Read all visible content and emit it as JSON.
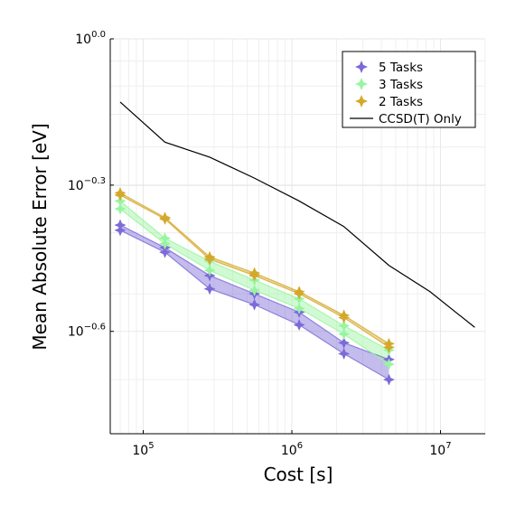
{
  "chart_data": {
    "type": "line",
    "xlabel": "Cost [s]",
    "ylabel": "Mean Absolute Error [eV]",
    "x_scale": "log10",
    "y_scale": "log10",
    "xlim": [
      60000,
      20000000
    ],
    "ylim": [
      0.1549,
      1.0
    ],
    "x_ticks": [
      {
        "value": 100000,
        "base": "10",
        "exp": "5"
      },
      {
        "value": 1000000,
        "base": "10",
        "exp": "6"
      },
      {
        "value": 10000000,
        "base": "10",
        "exp": "7"
      }
    ],
    "y_ticks": [
      {
        "value": 1.0,
        "base": "10",
        "exp": "0.0"
      },
      {
        "value": 0.5012,
        "base": "10",
        "exp": "−0.3"
      },
      {
        "value": 0.2512,
        "base": "10",
        "exp": "−0.6"
      }
    ],
    "grid": true,
    "legend_position": "top-right",
    "series": [
      {
        "name": "5 Tasks",
        "color": "#7b6ad8",
        "x": [
          70000,
          140000,
          280000,
          560000,
          1120000,
          2240000,
          4500000
        ],
        "upper": [
          0.415,
          0.373,
          0.327,
          0.3,
          0.275,
          0.238,
          0.22
        ],
        "lower": [
          0.405,
          0.365,
          0.307,
          0.285,
          0.259,
          0.226,
          0.2
        ]
      },
      {
        "name": "3 Tasks",
        "color": "#98f59f",
        "x": [
          70000,
          140000,
          280000,
          560000,
          1120000,
          2240000,
          4500000
        ],
        "upper": [
          0.465,
          0.39,
          0.35,
          0.32,
          0.293,
          0.258,
          0.23
        ],
        "lower": [
          0.448,
          0.38,
          0.335,
          0.305,
          0.28,
          0.248,
          0.215
        ]
      },
      {
        "name": "2 Tasks",
        "color": "#d4a82a",
        "x": [
          70000,
          140000,
          280000,
          560000,
          1120000,
          2240000,
          4500000
        ],
        "upper": [
          0.483,
          0.43,
          0.357,
          0.331,
          0.303,
          0.271,
          0.237
        ],
        "lower": [
          0.478,
          0.427,
          0.353,
          0.327,
          0.3,
          0.268,
          0.233
        ]
      },
      {
        "name": "CCSD(T) Only",
        "color": "#000000",
        "style": "line",
        "x": [
          70000,
          140000,
          280000,
          560000,
          1120000,
          2240000,
          4500000,
          8500000,
          17000000
        ],
        "values": [
          0.742,
          0.614,
          0.572,
          0.518,
          0.465,
          0.412,
          0.343,
          0.303,
          0.256
        ]
      }
    ]
  }
}
